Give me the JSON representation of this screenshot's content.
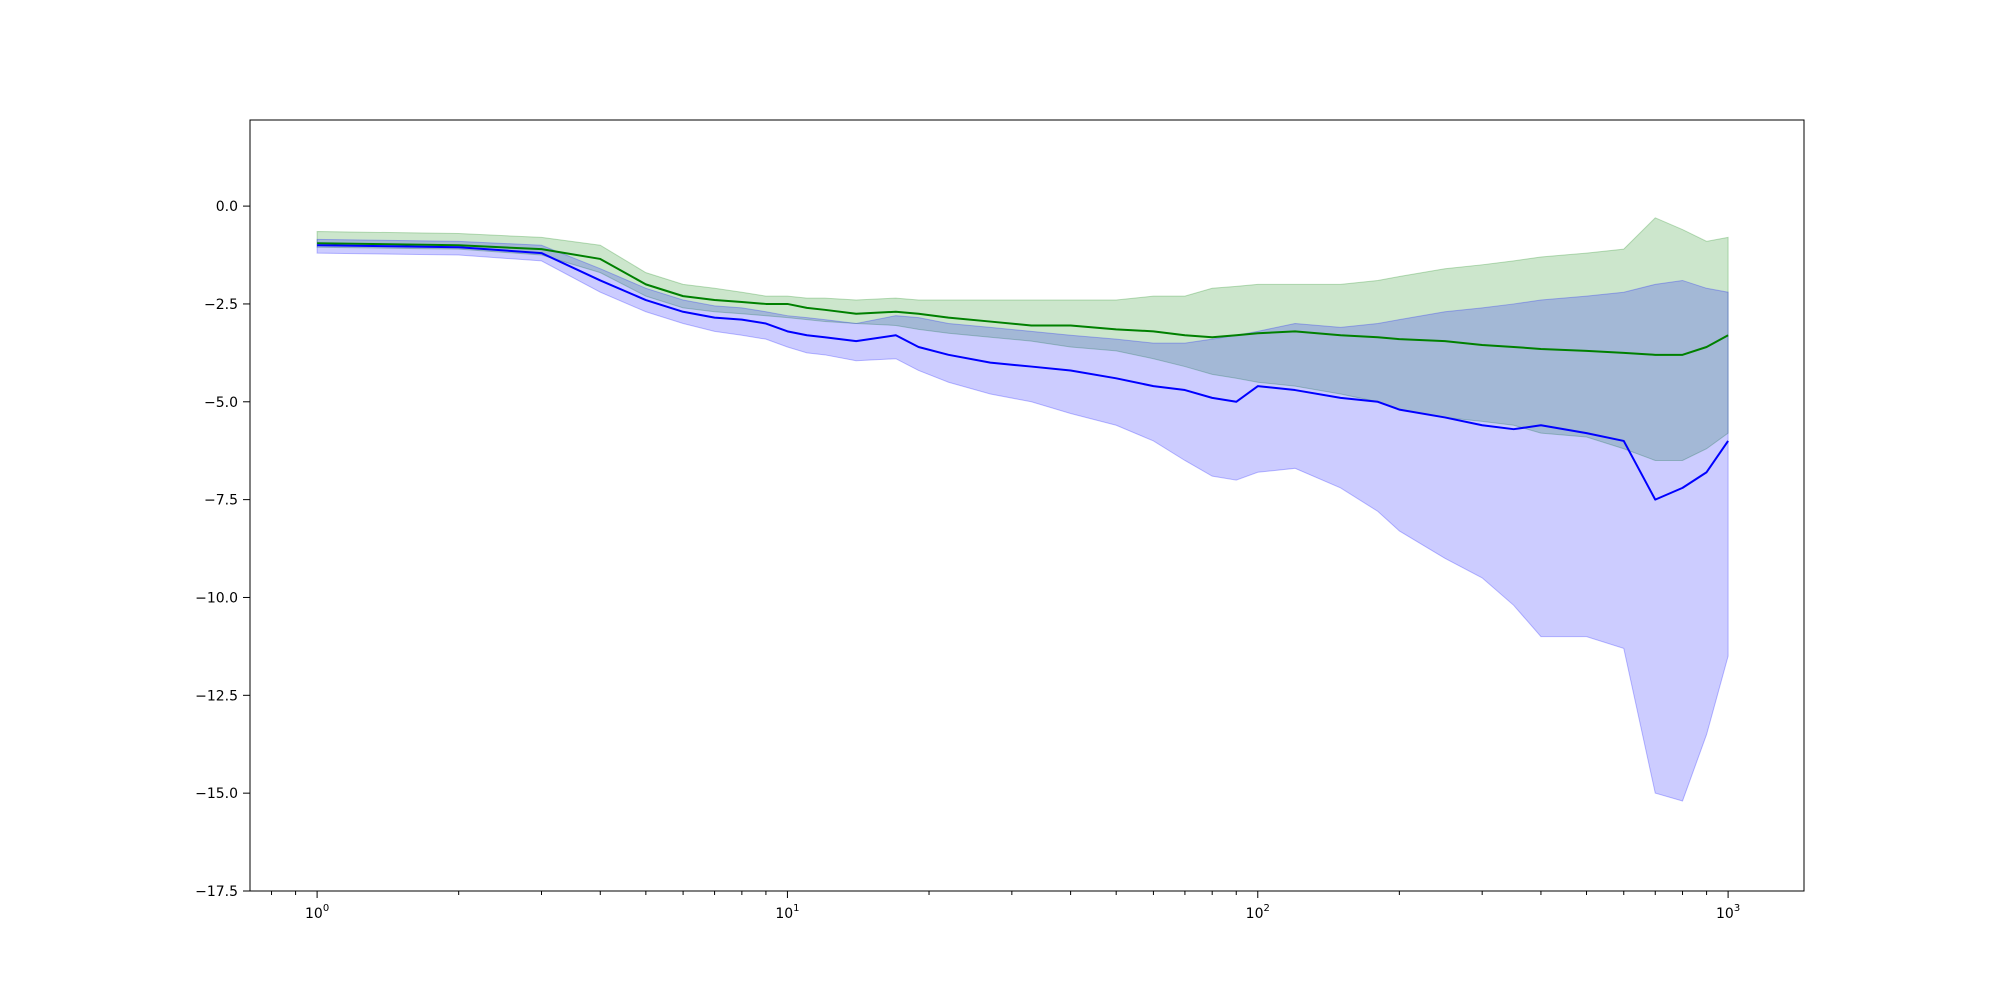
{
  "colors": {
    "series_green": "#008000",
    "series_blue": "#0000ff",
    "band_green": "#008000",
    "band_blue": "#0000ff"
  },
  "chart_data": {
    "type": "line",
    "title": "",
    "xlabel": "",
    "ylabel": "",
    "xscale": "log",
    "xlim": [
      0.72,
      1450
    ],
    "ylim": [
      -17.5,
      2.2
    ],
    "grid": false,
    "legend": "none",
    "x_ticks": [
      1,
      10,
      100,
      1000
    ],
    "x_tick_labels": [
      {
        "base": "10",
        "exp": "0"
      },
      {
        "base": "10",
        "exp": "1"
      },
      {
        "base": "10",
        "exp": "2"
      },
      {
        "base": "10",
        "exp": "3"
      }
    ],
    "y_ticks": [
      0.0,
      -2.5,
      -5.0,
      -7.5,
      -10.0,
      -12.5,
      -15.0,
      -17.5
    ],
    "y_tick_labels": [
      "0.0",
      "−2.5",
      "−5.0",
      "−7.5",
      "−10.0",
      "−12.5",
      "−15.0",
      "−17.5"
    ],
    "series": [
      {
        "color": "#008000",
        "band_opacity": 0.2,
        "x": [
          1,
          2,
          3,
          4,
          5,
          6,
          7,
          8,
          9,
          10,
          11,
          12,
          14,
          17,
          19,
          22,
          27,
          33,
          40,
          50,
          60,
          70,
          80,
          90,
          100,
          120,
          150,
          180,
          200,
          250,
          300,
          350,
          400,
          500,
          600,
          700,
          800,
          900,
          1000
        ],
        "y": [
          -0.95,
          -1.0,
          -1.1,
          -1.35,
          -2.0,
          -2.3,
          -2.4,
          -2.45,
          -2.5,
          -2.5,
          -2.6,
          -2.65,
          -2.75,
          -2.7,
          -2.75,
          -2.85,
          -2.95,
          -3.05,
          -3.05,
          -3.15,
          -3.2,
          -3.3,
          -3.35,
          -3.3,
          -3.25,
          -3.2,
          -3.3,
          -3.35,
          -3.4,
          -3.45,
          -3.55,
          -3.6,
          -3.65,
          -3.7,
          -3.75,
          -3.8,
          -3.8,
          -3.6,
          -3.3
        ],
        "upper": [
          -0.65,
          -0.7,
          -0.8,
          -1.0,
          -1.7,
          -2.0,
          -2.1,
          -2.2,
          -2.3,
          -2.3,
          -2.35,
          -2.35,
          -2.4,
          -2.35,
          -2.4,
          -2.4,
          -2.4,
          -2.4,
          -2.4,
          -2.4,
          -2.3,
          -2.3,
          -2.1,
          -2.05,
          -2.0,
          -2.0,
          -2.0,
          -1.9,
          -1.8,
          -1.6,
          -1.5,
          -1.4,
          -1.3,
          -1.2,
          -1.1,
          -0.3,
          -0.6,
          -0.9,
          -0.8
        ],
        "lower": [
          -1.05,
          -1.1,
          -1.25,
          -1.7,
          -2.3,
          -2.6,
          -2.7,
          -2.75,
          -2.8,
          -2.85,
          -2.9,
          -2.95,
          -3.0,
          -3.05,
          -3.15,
          -3.25,
          -3.35,
          -3.45,
          -3.6,
          -3.7,
          -3.9,
          -4.1,
          -4.3,
          -4.4,
          -4.5,
          -4.6,
          -4.8,
          -5.0,
          -5.2,
          -5.4,
          -5.5,
          -5.6,
          -5.8,
          -5.9,
          -6.2,
          -6.5,
          -6.5,
          -6.2,
          -5.8
        ]
      },
      {
        "color": "#0000ff",
        "band_opacity": 0.2,
        "x": [
          1,
          2,
          3,
          4,
          5,
          6,
          7,
          8,
          9,
          10,
          11,
          12,
          14,
          17,
          19,
          22,
          27,
          33,
          40,
          50,
          60,
          70,
          80,
          90,
          100,
          120,
          150,
          180,
          200,
          250,
          300,
          350,
          400,
          500,
          600,
          700,
          800,
          900,
          1000
        ],
        "y": [
          -1.0,
          -1.05,
          -1.2,
          -1.9,
          -2.4,
          -2.7,
          -2.85,
          -2.9,
          -3.0,
          -3.2,
          -3.3,
          -3.35,
          -3.45,
          -3.3,
          -3.6,
          -3.8,
          -4.0,
          -4.1,
          -4.2,
          -4.4,
          -4.6,
          -4.7,
          -4.9,
          -5.0,
          -4.6,
          -4.7,
          -4.9,
          -5.0,
          -5.2,
          -5.4,
          -5.6,
          -5.7,
          -5.6,
          -5.8,
          -6.0,
          -7.5,
          -7.2,
          -6.8,
          -6.0
        ],
        "upper": [
          -0.85,
          -0.9,
          -1.0,
          -1.6,
          -2.1,
          -2.4,
          -2.55,
          -2.6,
          -2.7,
          -2.8,
          -2.85,
          -2.9,
          -3.0,
          -2.8,
          -2.85,
          -3.0,
          -3.1,
          -3.2,
          -3.3,
          -3.4,
          -3.5,
          -3.5,
          -3.4,
          -3.3,
          -3.2,
          -3.0,
          -3.1,
          -3.0,
          -2.9,
          -2.7,
          -2.6,
          -2.5,
          -2.4,
          -2.3,
          -2.2,
          -2.0,
          -1.9,
          -2.1,
          -2.2
        ],
        "lower": [
          -1.2,
          -1.25,
          -1.4,
          -2.2,
          -2.7,
          -3.0,
          -3.2,
          -3.3,
          -3.4,
          -3.6,
          -3.75,
          -3.8,
          -3.95,
          -3.9,
          -4.2,
          -4.5,
          -4.8,
          -5.0,
          -5.3,
          -5.6,
          -6.0,
          -6.5,
          -6.9,
          -7.0,
          -6.8,
          -6.7,
          -7.2,
          -7.8,
          -8.3,
          -9.0,
          -9.5,
          -10.2,
          -11.0,
          -11.0,
          -11.3,
          -15.0,
          -15.2,
          -13.5,
          -11.5
        ]
      }
    ]
  }
}
